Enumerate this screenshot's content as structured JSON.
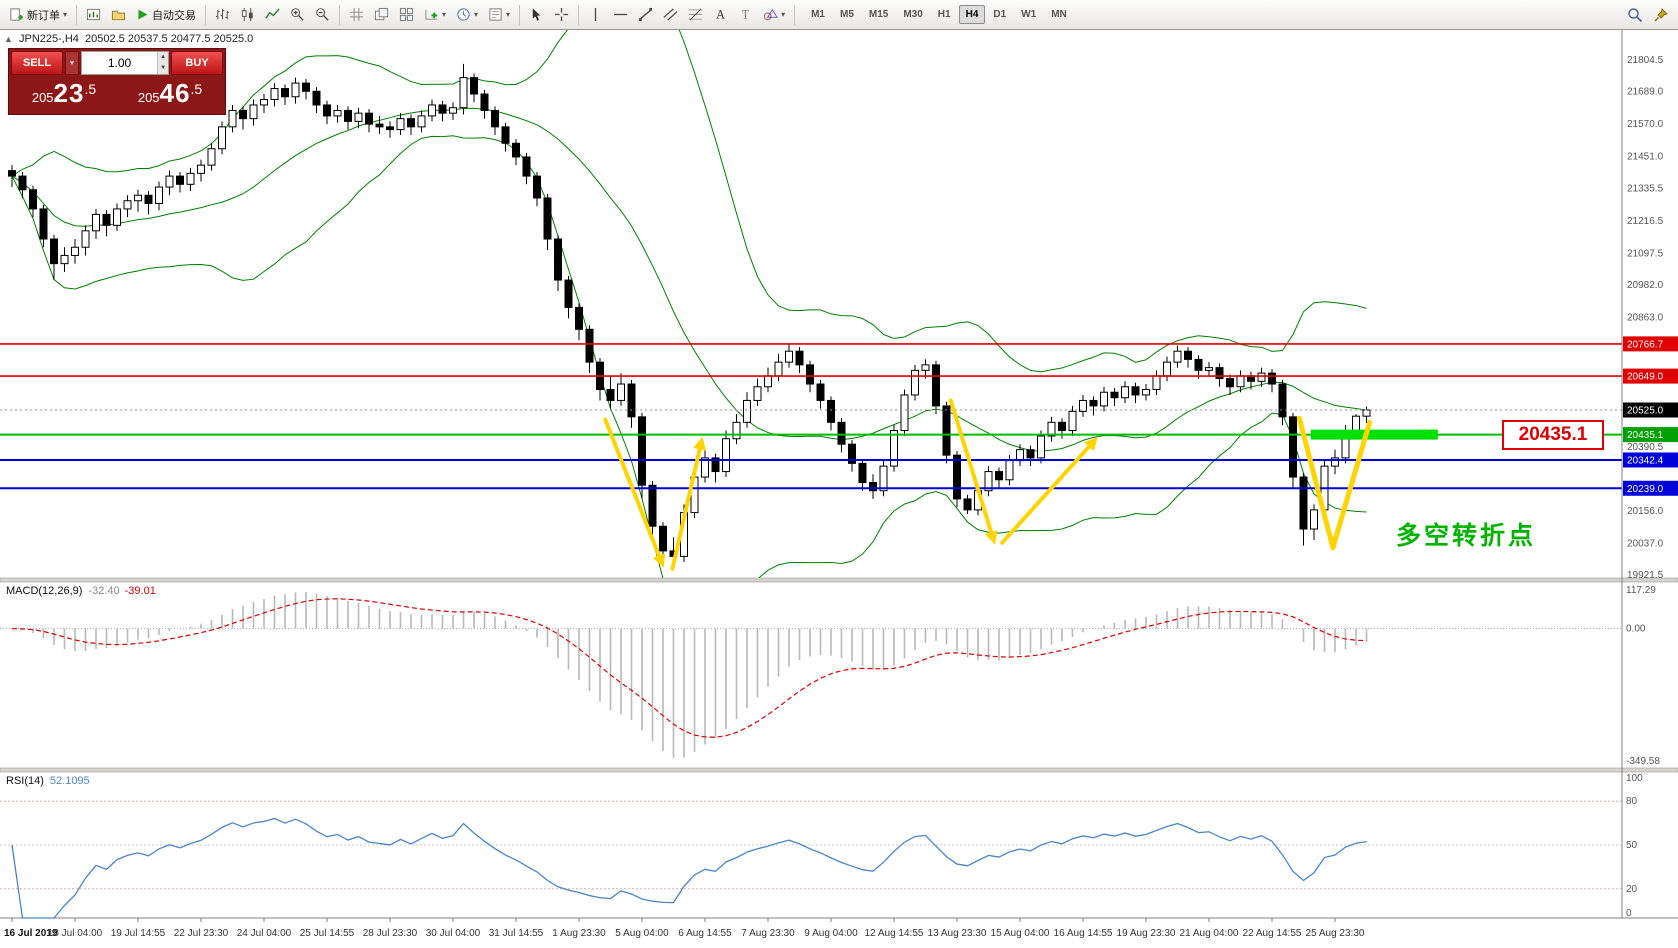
{
  "toolbar": {
    "new_order_label": "新订单",
    "autotrade_label": "自动交易",
    "timeframes": [
      "M1",
      "M5",
      "M15",
      "M30",
      "H1",
      "H4",
      "D1",
      "W1",
      "MN"
    ],
    "active": "H4"
  },
  "one_click": {
    "sell_label": "SELL",
    "buy_label": "BUY",
    "volume": "1.00",
    "sell_price": "20523.5",
    "buy_price": "20546.5"
  },
  "chart": {
    "symbol_period": "JPN225-,H4",
    "ohlc_text": "20502.5 20537.5 20477.5 20525.0"
  },
  "chart_data": {
    "type": "candlestick",
    "symbol": "JPN225-",
    "timeframe": "H4",
    "title": "JPN225-,H4 20502.5 20537.5 20477.5 20525.0",
    "price_axis": {
      "min": 19911,
      "max": 21914,
      "labels": [
        21804.5,
        21689.0,
        21570.0,
        21451.0,
        21335.5,
        21216.5,
        21097.5,
        20982.0,
        20863.0,
        20744.0,
        20625.0,
        20505.5,
        20390.5,
        20271.5,
        20156.0,
        20037.0,
        19921.5
      ]
    },
    "colors": {
      "up": "#FFFFFF",
      "down": "#000000",
      "bollinger": "#008000",
      "macd_hist": "#B8B8B8",
      "macd_signal": "#E00000",
      "rsi": "#4A86C8",
      "annotation": "#FFD400"
    },
    "bollinger": {
      "period": 20,
      "deviation": 2
    },
    "hlines": [
      {
        "price": 20766.7,
        "color": "#E00000",
        "width": 1.6,
        "tag": "20766.7"
      },
      {
        "price": 20649.0,
        "color": "#E00000",
        "width": 1.6,
        "tag": "20649.0"
      },
      {
        "price": 20435.1,
        "color": "#00BB00",
        "width": 2,
        "tag": "20435.1",
        "tag_bg": "#00A000"
      },
      {
        "price": 20342.4,
        "color": "#0000D8",
        "width": 2,
        "tag": "20342.4"
      },
      {
        "price": 20239.0,
        "color": "#0000D8",
        "width": 2,
        "tag": "20239.0"
      }
    ],
    "current_price": {
      "value": 20525.0,
      "tag": "20525.0",
      "tag_bg": "#000000"
    },
    "macd": {
      "label": "MACD(12,26,9)",
      "fast": 12,
      "slow": 26,
      "signal": 9,
      "value": "-32.40",
      "signal_value": "-39.01",
      "axis": [
        "117.29",
        "0.00",
        "-349.58"
      ]
    },
    "rsi": {
      "label": "RSI(14)",
      "period": 14,
      "value": "52.1095",
      "levels": [
        80,
        50,
        20
      ],
      "axis": [
        100,
        80,
        50,
        20,
        0
      ]
    },
    "annotations": {
      "color": "#FFD400",
      "arrows": [
        {
          "from": {
            "i": 56.5,
            "p": 20490
          },
          "to": {
            "i": 61.8,
            "p": 19975
          },
          "head": true,
          "w": 4
        },
        {
          "from": {
            "i": 62.9,
            "p": 19945
          },
          "to": {
            "i": 65.6,
            "p": 20400
          },
          "head": true,
          "w": 4
        },
        {
          "from": {
            "i": 89.4,
            "p": 20560
          },
          "to": {
            "i": 93.4,
            "p": 20060
          },
          "head": true,
          "w": 4
        },
        {
          "from": {
            "i": 94.3,
            "p": 20040
          },
          "to": {
            "i": 102.9,
            "p": 20405
          },
          "head": true,
          "w": 4
        },
        {
          "from": {
            "i": 122.6,
            "p": 20495
          },
          "to": {
            "i": 125.8,
            "p": 20022
          },
          "head": false,
          "w": 5
        },
        {
          "from": {
            "i": 125.8,
            "p": 20022
          },
          "to": {
            "i": 129.3,
            "p": 20480
          },
          "head": false,
          "w": 5
        }
      ],
      "highlight_rect": {
        "i1": 123.7,
        "i2": 135.8,
        "price": 20435.1,
        "color": "#00E000",
        "thickness": 10
      },
      "price_label": {
        "text": "20435.1",
        "color": "#E00000"
      },
      "note": {
        "text": "多空转折点",
        "color": "#00B400"
      }
    },
    "x_labels": [
      "16 Jul 2019",
      "18 Jul 04:00",
      "19 Jul 14:55",
      "22 Jul 23:30",
      "24 Jul 04:00",
      "25 Jul 14:55",
      "28 Jul 23:30",
      "30 Jul 04:00",
      "31 Jul 14:55",
      "1 Aug 23:30",
      "5 Aug 04:00",
      "6 Aug 14:55",
      "7 Aug 23:30",
      "9 Aug 04:00",
      "12 Aug 14:55",
      "13 Aug 23:30",
      "15 Aug 04:00",
      "16 Aug 14:55",
      "19 Aug 23:30",
      "21 Aug 04:00",
      "22 Aug 14:55",
      "25 Aug 23:30"
    ],
    "candles": [
      [
        21400,
        21420,
        21340,
        21380
      ],
      [
        21380,
        21395,
        21300,
        21330
      ],
      [
        21330,
        21345,
        21230,
        21260
      ],
      [
        21260,
        21275,
        21120,
        21150
      ],
      [
        21150,
        21165,
        21000,
        21060
      ],
      [
        21060,
        21120,
        21030,
        21090
      ],
      [
        21090,
        21150,
        21060,
        21120
      ],
      [
        21120,
        21200,
        21090,
        21180
      ],
      [
        21180,
        21260,
        21150,
        21240
      ],
      [
        21240,
        21255,
        21160,
        21200
      ],
      [
        21200,
        21280,
        21180,
        21260
      ],
      [
        21260,
        21310,
        21230,
        21290
      ],
      [
        21290,
        21330,
        21250,
        21310
      ],
      [
        21310,
        21325,
        21240,
        21280
      ],
      [
        21280,
        21360,
        21255,
        21340
      ],
      [
        21340,
        21400,
        21310,
        21380
      ],
      [
        21380,
        21395,
        21320,
        21350
      ],
      [
        21350,
        21410,
        21325,
        21390
      ],
      [
        21390,
        21440,
        21360,
        21420
      ],
      [
        21420,
        21500,
        21400,
        21480
      ],
      [
        21480,
        21580,
        21460,
        21560
      ],
      [
        21560,
        21640,
        21540,
        21620
      ],
      [
        21620,
        21635,
        21550,
        21590
      ],
      [
        21590,
        21660,
        21565,
        21640
      ],
      [
        21640,
        21680,
        21610,
        21660
      ],
      [
        21660,
        21720,
        21635,
        21700
      ],
      [
        21700,
        21715,
        21640,
        21670
      ],
      [
        21670,
        21740,
        21645,
        21720
      ],
      [
        21720,
        21735,
        21660,
        21690
      ],
      [
        21690,
        21705,
        21610,
        21640
      ],
      [
        21640,
        21655,
        21570,
        21600
      ],
      [
        21600,
        21640,
        21575,
        21620
      ],
      [
        21620,
        21635,
        21550,
        21580
      ],
      [
        21580,
        21630,
        21555,
        21610
      ],
      [
        21610,
        21625,
        21540,
        21570
      ],
      [
        21570,
        21600,
        21535,
        21560
      ],
      [
        21560,
        21580,
        21520,
        21550
      ],
      [
        21550,
        21610,
        21530,
        21590
      ],
      [
        21590,
        21605,
        21530,
        21560
      ],
      [
        21560,
        21620,
        21540,
        21600
      ],
      [
        21600,
        21660,
        21580,
        21640
      ],
      [
        21640,
        21655,
        21580,
        21610
      ],
      [
        21610,
        21650,
        21585,
        21630
      ],
      [
        21630,
        21790,
        21605,
        21740
      ],
      [
        21740,
        21755,
        21650,
        21680
      ],
      [
        21680,
        21695,
        21590,
        21620
      ],
      [
        21620,
        21635,
        21530,
        21560
      ],
      [
        21560,
        21575,
        21470,
        21500
      ],
      [
        21500,
        21515,
        21420,
        21450
      ],
      [
        21450,
        21465,
        21350,
        21380
      ],
      [
        21380,
        21395,
        21270,
        21300
      ],
      [
        21300,
        21315,
        21110,
        21150
      ],
      [
        21150,
        21165,
        20960,
        21000
      ],
      [
        21000,
        21015,
        20860,
        20900
      ],
      [
        20900,
        20915,
        20780,
        20820
      ],
      [
        20820,
        20835,
        20660,
        20700
      ],
      [
        20700,
        20715,
        20560,
        20600
      ],
      [
        20600,
        20650,
        20530,
        20560
      ],
      [
        20560,
        20660,
        20540,
        20620
      ],
      [
        20620,
        20635,
        20460,
        20500
      ],
      [
        20500,
        20515,
        20200,
        20250
      ],
      [
        20250,
        20265,
        20050,
        20100
      ],
      [
        20100,
        20115,
        19955,
        20010
      ],
      [
        20010,
        20060,
        19960,
        19990
      ],
      [
        19990,
        20180,
        19970,
        20150
      ],
      [
        20150,
        20310,
        20130,
        20280
      ],
      [
        20280,
        20380,
        20260,
        20350
      ],
      [
        20350,
        20365,
        20260,
        20300
      ],
      [
        20300,
        20450,
        20280,
        20420
      ],
      [
        20420,
        20510,
        20400,
        20480
      ],
      [
        20480,
        20590,
        20460,
        20560
      ],
      [
        20560,
        20640,
        20540,
        20610
      ],
      [
        20610,
        20680,
        20590,
        20650
      ],
      [
        20650,
        20730,
        20630,
        20700
      ],
      [
        20700,
        20765,
        20680,
        20740
      ],
      [
        20740,
        20755,
        20660,
        20690
      ],
      [
        20690,
        20705,
        20590,
        20620
      ],
      [
        20620,
        20635,
        20530,
        20560
      ],
      [
        20560,
        20575,
        20450,
        20480
      ],
      [
        20480,
        20495,
        20370,
        20400
      ],
      [
        20400,
        20415,
        20300,
        20330
      ],
      [
        20330,
        20345,
        20230,
        20260
      ],
      [
        20260,
        20290,
        20200,
        20230
      ],
      [
        20230,
        20340,
        20210,
        20320
      ],
      [
        20320,
        20470,
        20300,
        20450
      ],
      [
        20450,
        20600,
        20430,
        20580
      ],
      [
        20580,
        20690,
        20560,
        20670
      ],
      [
        20670,
        20710,
        20640,
        20690
      ],
      [
        20690,
        20705,
        20510,
        20540
      ],
      [
        20540,
        20555,
        20330,
        20360
      ],
      [
        20360,
        20375,
        20170,
        20200
      ],
      [
        20200,
        20215,
        20145,
        20160
      ],
      [
        20160,
        20250,
        20140,
        20230
      ],
      [
        20230,
        20320,
        20210,
        20300
      ],
      [
        20300,
        20315,
        20240,
        20270
      ],
      [
        20270,
        20360,
        20250,
        20340
      ],
      [
        20340,
        20400,
        20320,
        20380
      ],
      [
        20380,
        20395,
        20320,
        20350
      ],
      [
        20350,
        20450,
        20330,
        20430
      ],
      [
        20430,
        20500,
        20410,
        20480
      ],
      [
        20480,
        20495,
        20420,
        20450
      ],
      [
        20450,
        20540,
        20430,
        20520
      ],
      [
        20520,
        20580,
        20500,
        20560
      ],
      [
        20560,
        20575,
        20505,
        20540
      ],
      [
        20540,
        20610,
        20520,
        20590
      ],
      [
        20590,
        20605,
        20540,
        20570
      ],
      [
        20570,
        20630,
        20550,
        20610
      ],
      [
        20610,
        20625,
        20550,
        20580
      ],
      [
        20580,
        20620,
        20560,
        20600
      ],
      [
        20600,
        20670,
        20580,
        20650
      ],
      [
        20650,
        20720,
        20630,
        20700
      ],
      [
        20700,
        20760,
        20680,
        20740
      ],
      [
        20740,
        20755,
        20680,
        20710
      ],
      [
        20710,
        20725,
        20640,
        20670
      ],
      [
        20670,
        20700,
        20650,
        20680
      ],
      [
        20680,
        20695,
        20610,
        20640
      ],
      [
        20640,
        20655,
        20580,
        20610
      ],
      [
        20610,
        20670,
        20590,
        20650
      ],
      [
        20650,
        20665,
        20600,
        20630
      ],
      [
        20630,
        20680,
        20610,
        20660
      ],
      [
        20660,
        20675,
        20590,
        20620
      ],
      [
        20620,
        20635,
        20470,
        20500
      ],
      [
        20500,
        20515,
        20240,
        20280
      ],
      [
        20280,
        20295,
        20030,
        20090
      ],
      [
        20090,
        20180,
        20050,
        20160
      ],
      [
        20160,
        20340,
        20140,
        20320
      ],
      [
        20320,
        20380,
        20290,
        20350
      ],
      [
        20350,
        20470,
        20330,
        20450
      ],
      [
        20450,
        20510,
        20430,
        20502.5
      ],
      [
        20502.5,
        20537.5,
        20477.5,
        20525
      ]
    ]
  }
}
